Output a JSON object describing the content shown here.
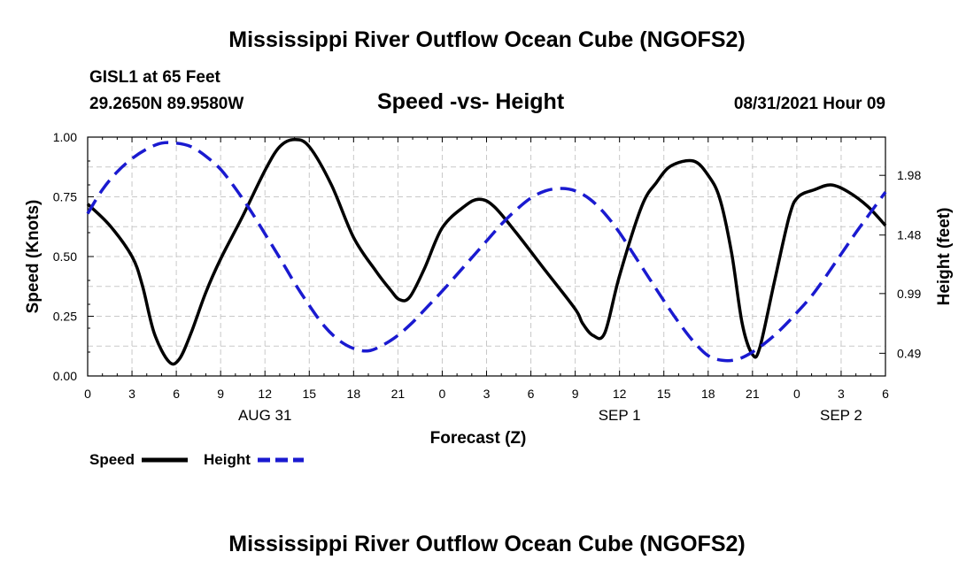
{
  "page": {
    "title_top": "Mississippi River Outflow Ocean Cube (NGOFS2)",
    "title_bottom": "Mississippi River Outflow Ocean Cube (NGOFS2)",
    "station": "GISL1 at 65 Feet",
    "coords": "29.2650N  89.9580W",
    "datetime": "08/31/2021 Hour 09"
  },
  "legend": {
    "speed_label": "Speed",
    "height_label": "Height"
  },
  "colors": {
    "speed": "#000000",
    "height": "#1a1ad0",
    "grid": "#c8c8c8"
  },
  "chart_data": {
    "type": "line",
    "title": "Speed -vs- Height",
    "xlabel": "Forecast (Z)",
    "ylabel_left": "Speed (Knots)",
    "ylabel_right": "Height (feet)",
    "xlim": [
      0,
      54
    ],
    "ylim_left": [
      0,
      1
    ],
    "ylim_right": [
      0.3,
      2.3
    ],
    "x_ticks": [
      0,
      3,
      6,
      9,
      12,
      15,
      18,
      21,
      24,
      27,
      30,
      33,
      36,
      39,
      42,
      45,
      48,
      51,
      54
    ],
    "x_tick_labels": [
      "0",
      "3",
      "6",
      "9",
      "12",
      "15",
      "18",
      "21",
      "0",
      "3",
      "6",
      "9",
      "12",
      "15",
      "18",
      "21",
      "0",
      "3",
      "6"
    ],
    "y_left_ticks": [
      0,
      0.25,
      0.5,
      0.75,
      1.0
    ],
    "y_left_tick_labels": [
      "0.00",
      "0.25",
      "0.50",
      "0.75",
      "1.00"
    ],
    "y_right_ticks": [
      0.49,
      0.99,
      1.48,
      1.98
    ],
    "y_right_tick_labels": [
      "0.49",
      "0.99",
      "1.48",
      "1.98"
    ],
    "date_labels": [
      {
        "x": 12,
        "label": "AUG 31"
      },
      {
        "x": 36,
        "label": "SEP 1"
      },
      {
        "x": 51,
        "label": "SEP 2"
      }
    ],
    "series": [
      {
        "name": "Speed",
        "axis": "left",
        "style": "solid",
        "x": [
          0,
          1.5,
          3,
          3.7,
          4.5,
          5.5,
          6.2,
          7,
          8,
          9,
          10.5,
          12,
          13,
          14,
          15,
          16.5,
          18,
          19.5,
          20.5,
          21.1,
          21.8,
          22.8,
          24,
          25.5,
          26.5,
          27.5,
          29,
          31,
          33,
          33.5,
          34.2,
          35,
          36,
          37.5,
          38.5,
          39.5,
          41,
          42,
          42.8,
          43.6,
          44.3,
          45,
          45.5,
          46.5,
          47.5,
          48.1,
          49.2,
          50.3,
          51.5,
          52.8,
          54
        ],
        "values": [
          0.72,
          0.63,
          0.5,
          0.38,
          0.18,
          0.06,
          0.07,
          0.18,
          0.35,
          0.49,
          0.67,
          0.86,
          0.96,
          0.99,
          0.96,
          0.8,
          0.58,
          0.44,
          0.36,
          0.32,
          0.33,
          0.45,
          0.62,
          0.71,
          0.74,
          0.71,
          0.6,
          0.44,
          0.28,
          0.22,
          0.17,
          0.18,
          0.42,
          0.71,
          0.81,
          0.88,
          0.9,
          0.84,
          0.74,
          0.51,
          0.22,
          0.09,
          0.12,
          0.4,
          0.67,
          0.75,
          0.78,
          0.8,
          0.77,
          0.71,
          0.63
        ]
      },
      {
        "name": "Height",
        "axis": "right",
        "style": "dashed",
        "x": [
          0,
          1,
          2,
          3,
          4,
          5,
          6,
          7,
          8,
          9,
          10,
          11,
          12,
          13,
          14,
          15,
          16,
          17,
          18,
          19,
          20,
          21,
          22,
          23,
          24,
          25,
          26,
          27,
          28,
          29,
          30,
          31,
          32,
          33,
          34,
          35,
          36,
          37,
          38,
          39,
          40,
          41,
          42,
          43,
          44,
          45,
          46,
          47,
          48,
          49,
          50,
          51,
          52,
          53,
          54
        ],
        "values": [
          1.66,
          1.86,
          2.01,
          2.12,
          2.2,
          2.25,
          2.25,
          2.22,
          2.14,
          2.03,
          1.87,
          1.69,
          1.49,
          1.29,
          1.08,
          0.89,
          0.72,
          0.6,
          0.53,
          0.51,
          0.56,
          0.64,
          0.75,
          0.88,
          1.01,
          1.15,
          1.29,
          1.43,
          1.57,
          1.69,
          1.79,
          1.85,
          1.87,
          1.85,
          1.78,
          1.66,
          1.5,
          1.31,
          1.12,
          0.93,
          0.75,
          0.59,
          0.47,
          0.43,
          0.44,
          0.5,
          0.59,
          0.7,
          0.83,
          0.97,
          1.14,
          1.32,
          1.5,
          1.67,
          1.84
        ]
      }
    ]
  }
}
